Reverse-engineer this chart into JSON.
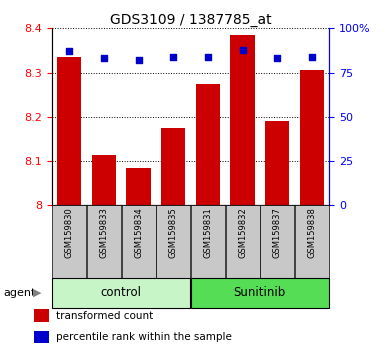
{
  "title": "GDS3109 / 1387785_at",
  "samples": [
    "GSM159830",
    "GSM159833",
    "GSM159834",
    "GSM159835",
    "GSM159831",
    "GSM159832",
    "GSM159837",
    "GSM159838"
  ],
  "red_values": [
    8.335,
    8.113,
    8.085,
    8.175,
    8.275,
    8.385,
    8.19,
    8.305
  ],
  "blue_values": [
    87,
    83,
    82,
    84,
    84,
    88,
    83,
    84
  ],
  "ylim_left": [
    8.0,
    8.4
  ],
  "ylim_right": [
    0,
    100
  ],
  "yticks_left": [
    8.0,
    8.1,
    8.2,
    8.3,
    8.4
  ],
  "ytick_labels_left": [
    "8",
    "8.1",
    "8.2",
    "8.3",
    "8.4"
  ],
  "yticks_right": [
    0,
    25,
    50,
    75,
    100
  ],
  "ytick_labels_right": [
    "0",
    "25",
    "50",
    "75",
    "100%"
  ],
  "groups": [
    {
      "label": "control",
      "indices": [
        0,
        1,
        2,
        3
      ],
      "color": "#c8f5c8"
    },
    {
      "label": "Sunitinib",
      "indices": [
        4,
        5,
        6,
        7
      ],
      "color": "#55dd55"
    }
  ],
  "bar_color": "#cc0000",
  "dot_color": "#0000cc",
  "tick_area_color": "#c8c8c8",
  "agent_label": "agent",
  "legend_items": [
    {
      "color": "#cc0000",
      "label": "transformed count"
    },
    {
      "color": "#0000cc",
      "label": "percentile rank within the sample"
    }
  ]
}
